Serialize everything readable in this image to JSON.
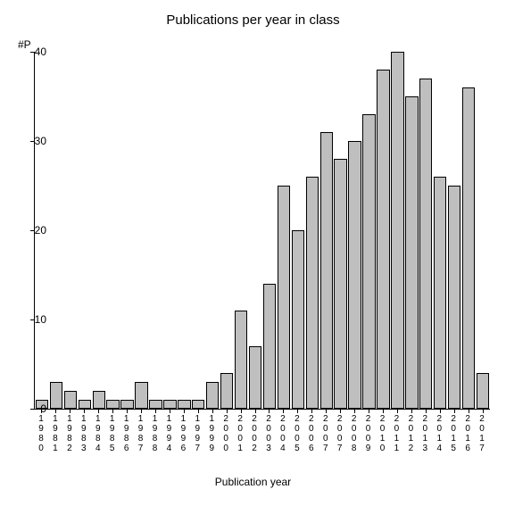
{
  "chart": {
    "type": "bar",
    "title": "Publications per year in class",
    "yaxis_label": "#P",
    "xaxis_label": "Publication year",
    "title_fontsize": 15,
    "label_fontsize": 12,
    "tick_fontsize": 11,
    "ylim": [
      0,
      40
    ],
    "ytick_step": 10,
    "yticks": [
      0,
      10,
      20,
      30,
      40
    ],
    "background_color": "#ffffff",
    "bar_color": "#bfbfbf",
    "bar_border_color": "#000000",
    "axis_color": "#000000",
    "bar_width": 0.9,
    "categories": [
      "1980",
      "1981",
      "1982",
      "1983",
      "1984",
      "1985",
      "1986",
      "1987",
      "1988",
      "1994",
      "1996",
      "1997",
      "1999",
      "2000",
      "2001",
      "2002",
      "2003",
      "2004",
      "2005",
      "2006",
      "2007",
      "2007",
      "2008",
      "2009",
      "2010",
      "2011",
      "2012",
      "2013",
      "2014",
      "2015",
      "2016",
      "2017"
    ],
    "values": [
      1,
      3,
      2,
      1,
      2,
      1,
      1,
      3,
      1,
      1,
      1,
      1,
      3,
      4,
      11,
      7,
      14,
      25,
      20,
      26,
      31,
      28,
      30,
      33,
      38,
      40,
      35,
      37,
      26,
      25,
      36,
      4
    ]
  }
}
